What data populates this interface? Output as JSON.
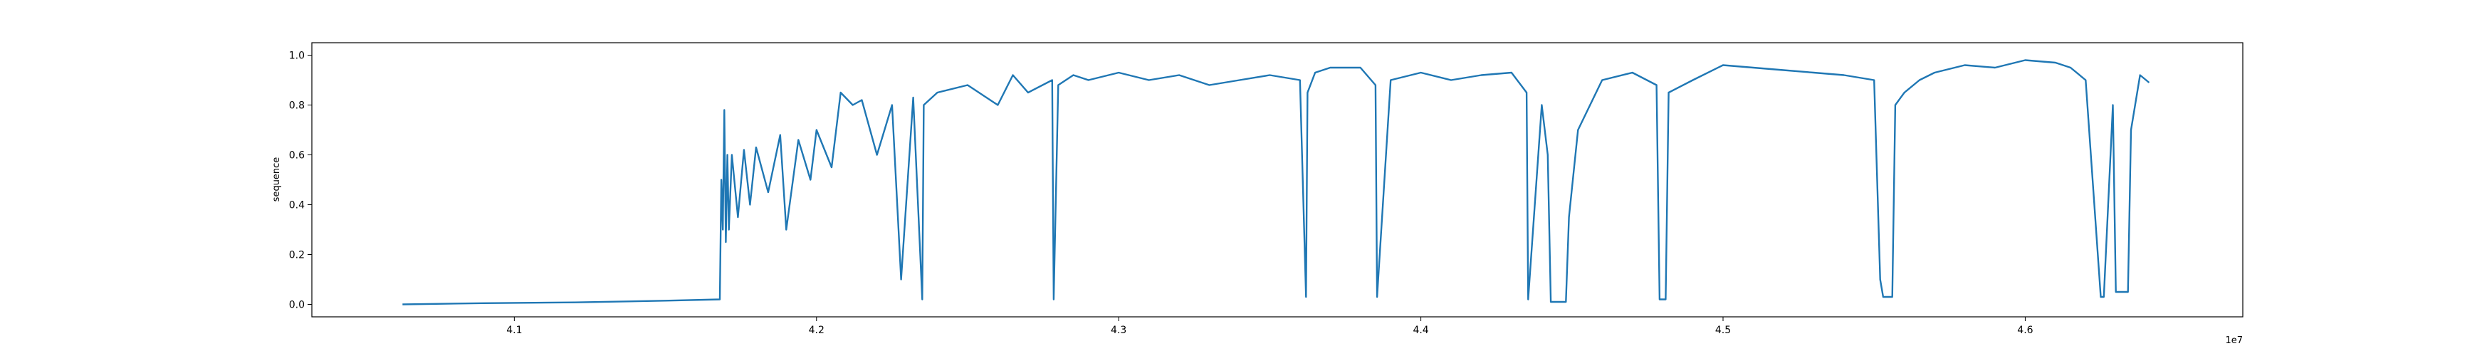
{
  "chart_data": {
    "type": "line",
    "title": "",
    "xlabel": "",
    "ylabel": "sequence",
    "x_offset_label": "1e7",
    "xlim": [
      4.033,
      4.672
    ],
    "ylim": [
      -0.05,
      1.05
    ],
    "xticks": [
      {
        "value": 4.1,
        "label": "4.1"
      },
      {
        "value": 4.2,
        "label": "4.2"
      },
      {
        "value": 4.3,
        "label": "4.3"
      },
      {
        "value": 4.4,
        "label": "4.4"
      },
      {
        "value": 4.5,
        "label": "4.5"
      },
      {
        "value": 4.6,
        "label": "4.6"
      }
    ],
    "yticks": [
      {
        "value": 0.0,
        "label": "0.0"
      },
      {
        "value": 0.2,
        "label": "0.2"
      },
      {
        "value": 0.4,
        "label": "0.4"
      },
      {
        "value": 0.6,
        "label": "0.6"
      },
      {
        "value": 0.8,
        "label": "0.8"
      },
      {
        "value": 1.0,
        "label": "1.0"
      }
    ],
    "grid": false,
    "legend": false,
    "series": [
      {
        "color": "#1f77b4",
        "x": [
          4.063,
          4.09,
          4.12,
          4.15,
          4.168,
          4.1685,
          4.169,
          4.1695,
          4.17,
          4.1705,
          4.171,
          4.172,
          4.174,
          4.176,
          4.178,
          4.18,
          4.184,
          4.188,
          4.19,
          4.194,
          4.198,
          4.2,
          4.205,
          4.208,
          4.212,
          4.215,
          4.22,
          4.225,
          4.228,
          4.232,
          4.235,
          4.2355,
          4.24,
          4.25,
          4.26,
          4.265,
          4.27,
          4.278,
          4.2785,
          4.28,
          4.285,
          4.29,
          4.3,
          4.31,
          4.32,
          4.33,
          4.34,
          4.35,
          4.36,
          4.362,
          4.3625,
          4.365,
          4.37,
          4.38,
          4.385,
          4.3855,
          4.39,
          4.4,
          4.41,
          4.42,
          4.43,
          4.435,
          4.4355,
          4.44,
          4.442,
          4.443,
          4.448,
          4.449,
          4.452,
          4.46,
          4.47,
          4.478,
          4.479,
          4.481,
          4.482,
          4.49,
          4.5,
          4.51,
          4.52,
          4.53,
          4.54,
          4.55,
          4.552,
          4.553,
          4.556,
          4.557,
          4.56,
          4.565,
          4.57,
          4.58,
          4.59,
          4.6,
          4.61,
          4.615,
          4.62,
          4.625,
          4.626,
          4.629,
          4.63,
          4.634,
          4.635,
          4.638,
          4.641
        ],
        "y": [
          0.0,
          0.005,
          0.008,
          0.015,
          0.02,
          0.5,
          0.3,
          0.78,
          0.25,
          0.6,
          0.3,
          0.6,
          0.35,
          0.62,
          0.4,
          0.63,
          0.45,
          0.68,
          0.3,
          0.66,
          0.5,
          0.7,
          0.55,
          0.85,
          0.8,
          0.82,
          0.6,
          0.8,
          0.1,
          0.83,
          0.02,
          0.8,
          0.85,
          0.88,
          0.8,
          0.92,
          0.85,
          0.9,
          0.02,
          0.88,
          0.92,
          0.9,
          0.93,
          0.9,
          0.92,
          0.88,
          0.9,
          0.92,
          0.9,
          0.03,
          0.85,
          0.93,
          0.95,
          0.95,
          0.88,
          0.03,
          0.9,
          0.93,
          0.9,
          0.92,
          0.93,
          0.85,
          0.02,
          0.8,
          0.6,
          0.01,
          0.01,
          0.35,
          0.7,
          0.9,
          0.93,
          0.88,
          0.02,
          0.02,
          0.85,
          0.9,
          0.96,
          0.95,
          0.94,
          0.93,
          0.92,
          0.9,
          0.1,
          0.03,
          0.03,
          0.8,
          0.85,
          0.9,
          0.93,
          0.96,
          0.95,
          0.98,
          0.97,
          0.95,
          0.9,
          0.03,
          0.03,
          0.8,
          0.05,
          0.05,
          0.7,
          0.92,
          0.89
        ]
      }
    ]
  }
}
